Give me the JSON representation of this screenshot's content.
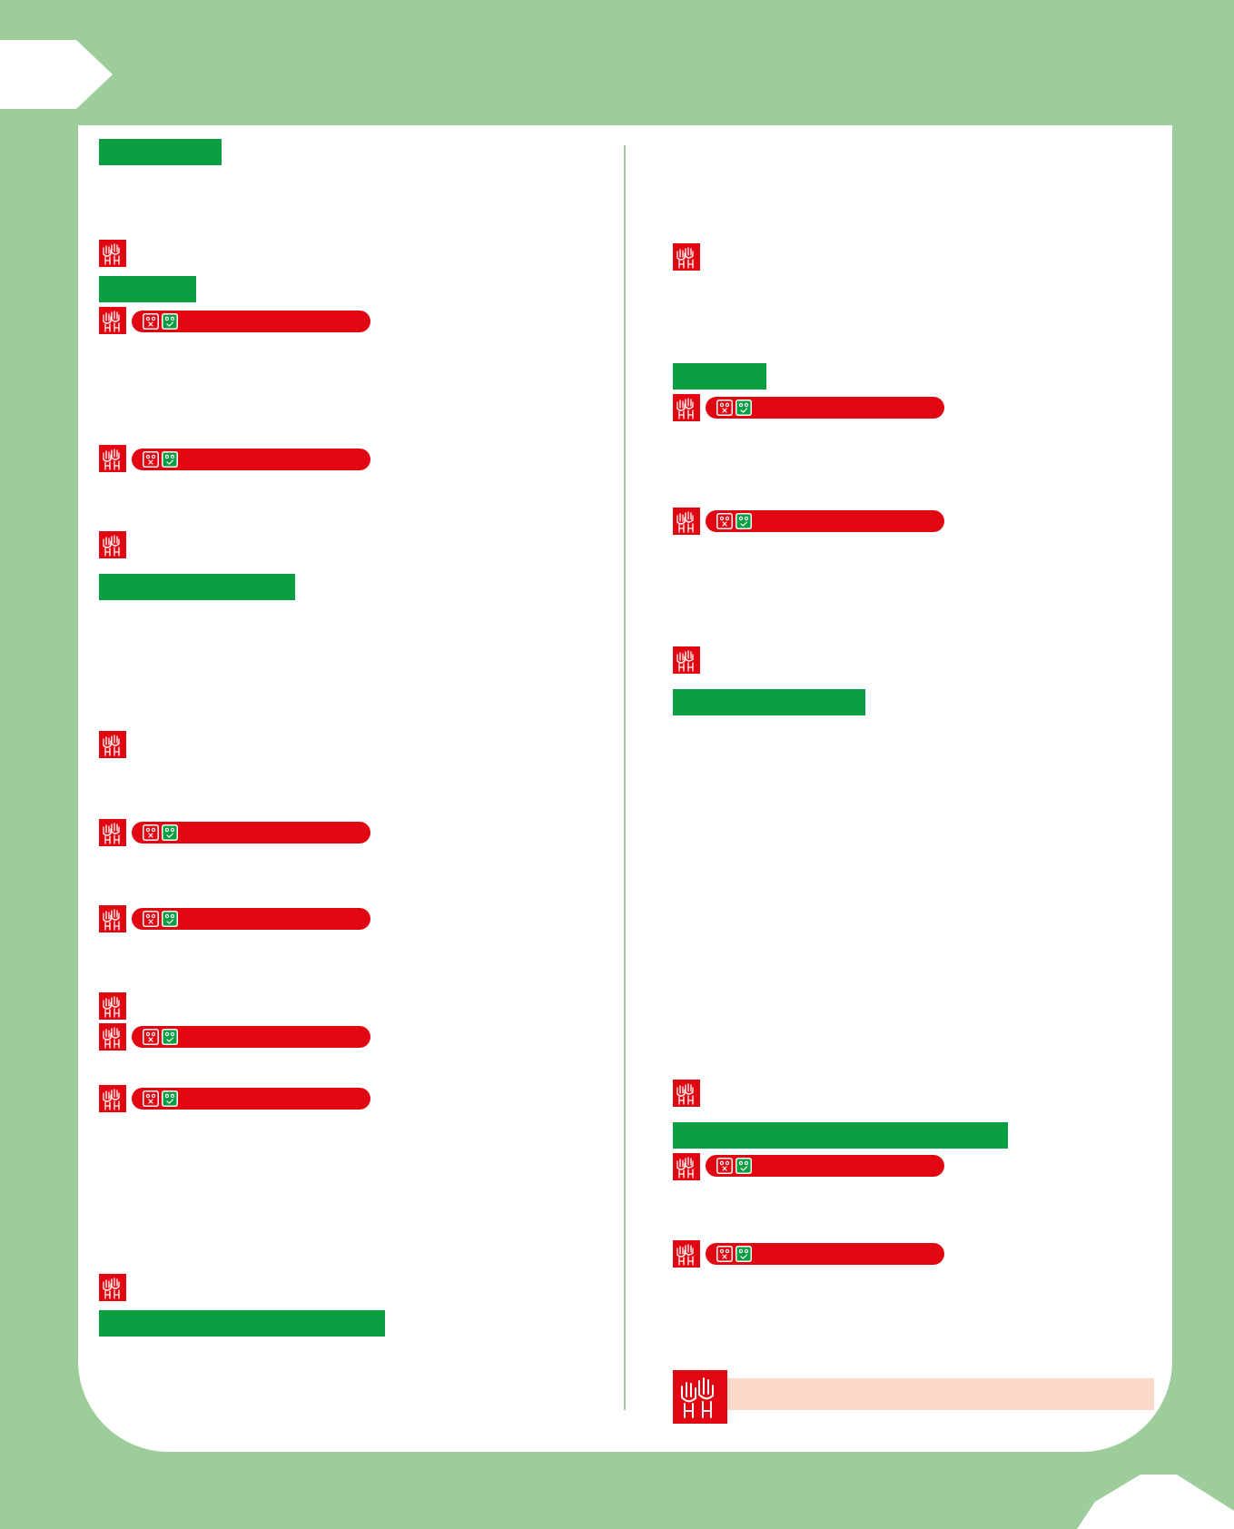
{
  "colors": {
    "page_background": "#9dcd9a",
    "sheet": "#ffffff",
    "heading_bar": "#0a9e43",
    "icon": "#e20613",
    "survey_bar": "#e20613",
    "answer_no": "#e20613",
    "answer_yes": "#0a9e43",
    "footer_bar": "#fbd8c8"
  },
  "icons": {
    "section": "raised-hands-icon",
    "answer_no": "sad-face-cross-icon",
    "answer_yes": "happy-face-check-icon"
  }
}
